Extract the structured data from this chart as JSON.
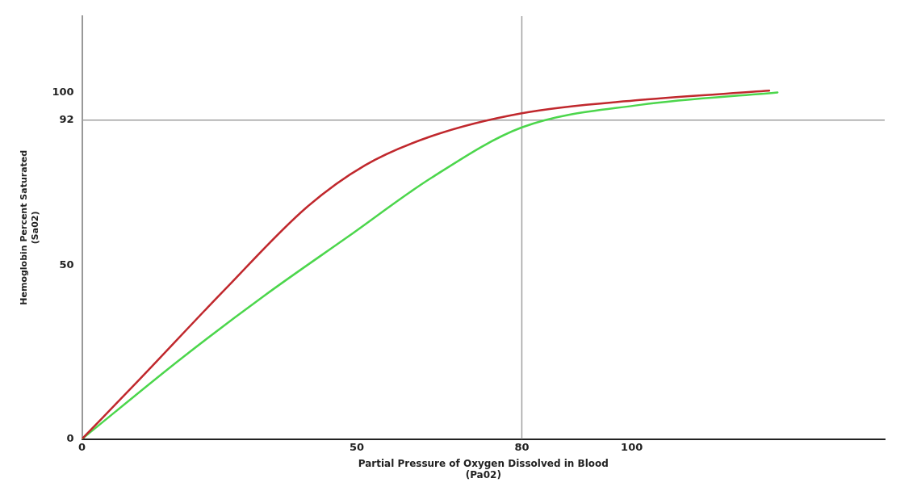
{
  "chart_data": {
    "type": "line",
    "xlabel": "Partial Pressure of Oxygen Dissolved in Blood\n(Pa02)",
    "ylabel": "Hemoglobin Percent Saturated\n(Sa02)",
    "xlim": [
      0,
      146
    ],
    "xticks": [
      0,
      50,
      80,
      100
    ],
    "ylim": [
      0,
      122
    ],
    "yticks": [
      0,
      50,
      92,
      100
    ],
    "grid": false,
    "legend": false,
    "marker": "none",
    "line_style": "solid",
    "ref_lines": [
      {
        "axis": "y",
        "value": 92,
        "color": "#a0a0a0"
      },
      {
        "axis": "x",
        "value": 80,
        "color": "#a0a0a0"
      }
    ],
    "series": [
      {
        "color": "#c0282d",
        "x": [
          0,
          10.6,
          25.8,
          40.9,
          51.5,
          63.6,
          80,
          101.5,
          125
        ],
        "values": [
          0,
          17.4,
          42.8,
          66.9,
          79,
          87.4,
          94,
          97.8,
          100.5
        ]
      },
      {
        "color": "#4cd64c",
        "x": [
          0,
          18.2,
          33.3,
          48.5,
          63.6,
          80,
          101.5,
          126.5
        ],
        "values": [
          0,
          23.4,
          41.5,
          58.5,
          75.4,
          89.9,
          96.4,
          100
        ]
      }
    ]
  }
}
